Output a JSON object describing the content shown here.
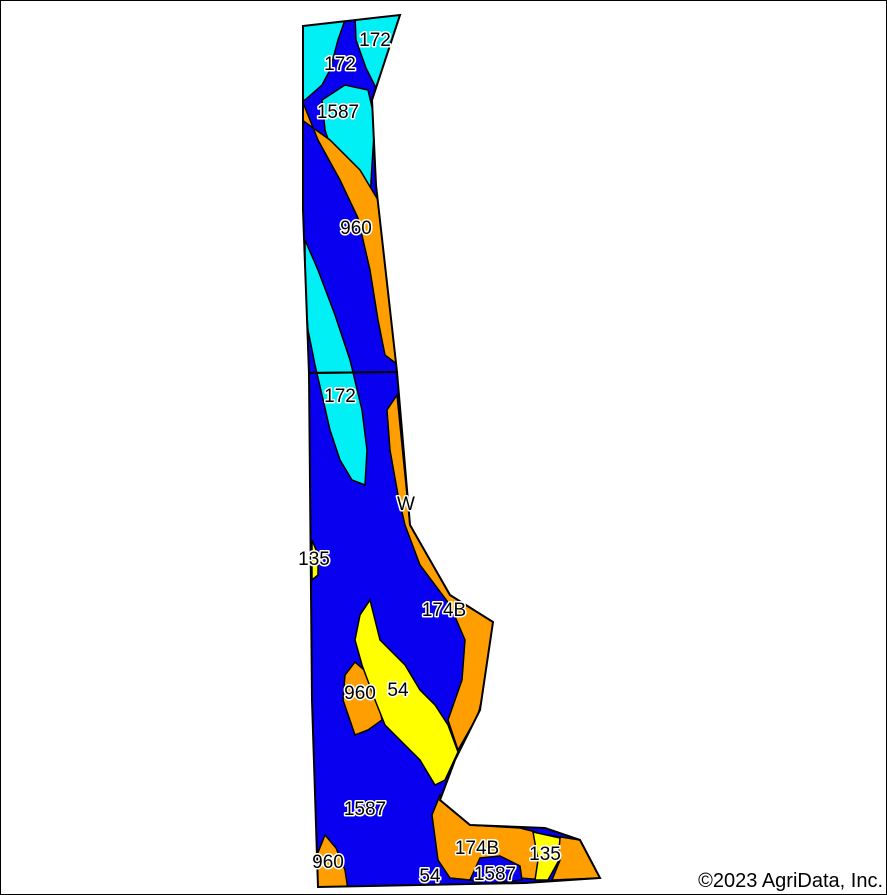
{
  "map": {
    "colors": {
      "dark_blue": "#0a00f0",
      "cyan": "#00f0f5",
      "orange": "#ff9e00",
      "yellow": "#ffff00",
      "outline": "#000000",
      "background": "#ffffff"
    },
    "soil_labels": [
      "172",
      "172",
      "1587",
      "960",
      "172",
      "W",
      "135",
      "174B",
      "960",
      "54",
      "1587",
      "960",
      "174B",
      "135",
      "54",
      "1587"
    ],
    "copyright": "©2023 AgriData, Inc."
  }
}
